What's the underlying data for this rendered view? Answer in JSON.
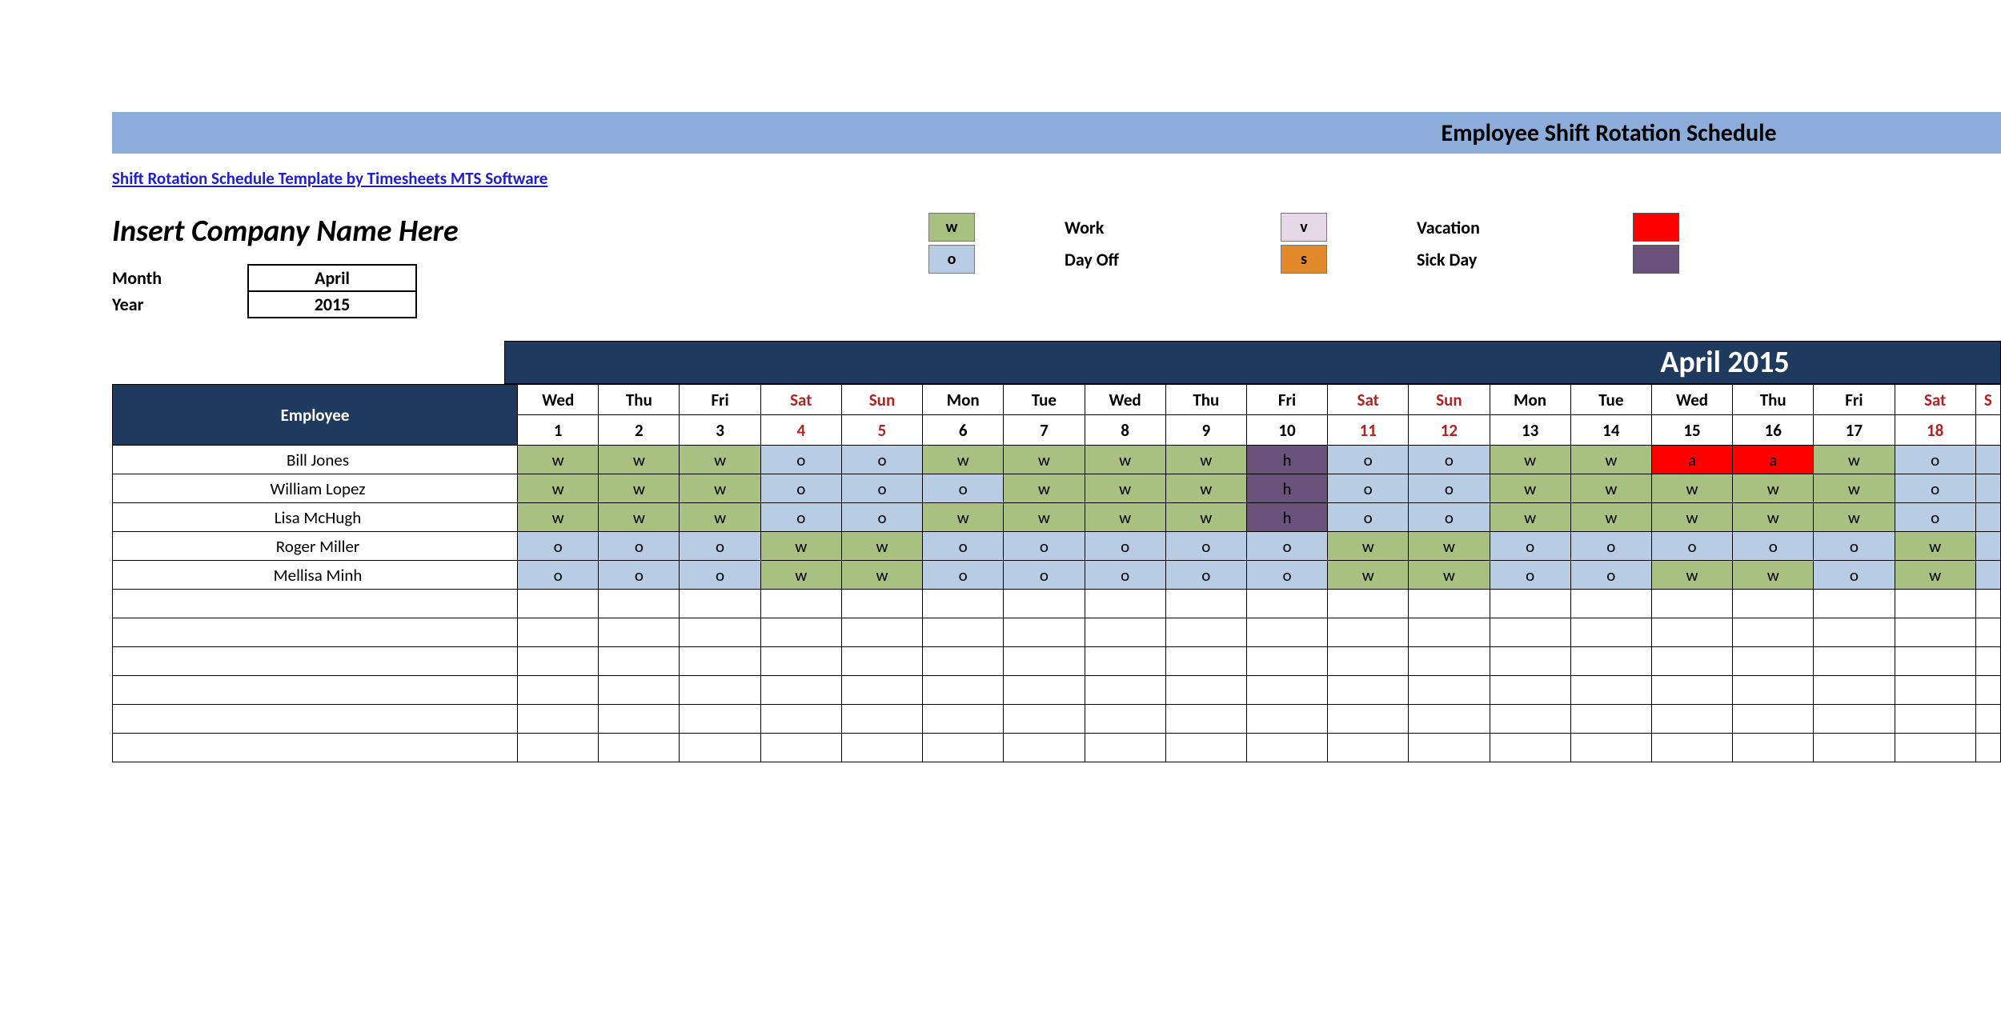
{
  "title_bar": "Employee Shift Rotation Schedule",
  "template_link": "Shift Rotation Schedule Template by Timesheets MTS Software",
  "company_name": "Insert Company Name Here",
  "month_label": "Month",
  "year_label": "Year",
  "month_value": "April",
  "year_value": "2015",
  "month_header": "April 2015",
  "employee_header": "Employee",
  "colors": {
    "title_bar_bg": "#8cacd9",
    "header_bg": "#1f3a5f",
    "header_fg": "#ffffff",
    "weekend_fg": "#b22222",
    "w": "#a8c080",
    "o": "#b8cce4",
    "v": "#e6d8e6",
    "s": "#e28a2b",
    "h": "#6b527a",
    "a": "#ff0000",
    "red_swatch": "#ff0000",
    "purple_swatch": "#6b527a"
  },
  "legend": [
    {
      "code": "w",
      "label": "Work",
      "bg": "#a8c080"
    },
    {
      "code": "o",
      "label": "Day Off",
      "bg": "#b8cce4"
    },
    {
      "code": "v",
      "label": "Vacation",
      "bg": "#e6d8e6"
    },
    {
      "code": "s",
      "label": "Sick Day",
      "bg": "#e28a2b"
    }
  ],
  "day_headers": [
    {
      "dow": "Wed",
      "num": "1",
      "weekend": false
    },
    {
      "dow": "Thu",
      "num": "2",
      "weekend": false
    },
    {
      "dow": "Fri",
      "num": "3",
      "weekend": false
    },
    {
      "dow": "Sat",
      "num": "4",
      "weekend": true
    },
    {
      "dow": "Sun",
      "num": "5",
      "weekend": true
    },
    {
      "dow": "Mon",
      "num": "6",
      "weekend": false
    },
    {
      "dow": "Tue",
      "num": "7",
      "weekend": false
    },
    {
      "dow": "Wed",
      "num": "8",
      "weekend": false
    },
    {
      "dow": "Thu",
      "num": "9",
      "weekend": false
    },
    {
      "dow": "Fri",
      "num": "10",
      "weekend": false
    },
    {
      "dow": "Sat",
      "num": "11",
      "weekend": true
    },
    {
      "dow": "Sun",
      "num": "12",
      "weekend": true
    },
    {
      "dow": "Mon",
      "num": "13",
      "weekend": false
    },
    {
      "dow": "Tue",
      "num": "14",
      "weekend": false
    },
    {
      "dow": "Wed",
      "num": "15",
      "weekend": false
    },
    {
      "dow": "Thu",
      "num": "16",
      "weekend": false
    },
    {
      "dow": "Fri",
      "num": "17",
      "weekend": false
    },
    {
      "dow": "Sat",
      "num": "18",
      "weekend": true
    },
    {
      "dow": "S",
      "num": "",
      "weekend": true
    }
  ],
  "employees": [
    {
      "name": "Bill Jones",
      "shifts": [
        "w",
        "w",
        "w",
        "o",
        "o",
        "w",
        "w",
        "w",
        "w",
        "h",
        "o",
        "o",
        "w",
        "w",
        "a",
        "a",
        "w",
        "o",
        ""
      ]
    },
    {
      "name": "William Lopez",
      "shifts": [
        "w",
        "w",
        "w",
        "o",
        "o",
        "o",
        "w",
        "w",
        "w",
        "h",
        "o",
        "o",
        "w",
        "w",
        "w",
        "w",
        "w",
        "o",
        ""
      ]
    },
    {
      "name": "Lisa McHugh",
      "shifts": [
        "w",
        "w",
        "w",
        "o",
        "o",
        "w",
        "w",
        "w",
        "w",
        "h",
        "o",
        "o",
        "w",
        "w",
        "w",
        "w",
        "w",
        "o",
        ""
      ]
    },
    {
      "name": "Roger Miller",
      "shifts": [
        "o",
        "o",
        "o",
        "w",
        "w",
        "o",
        "o",
        "o",
        "o",
        "o",
        "w",
        "w",
        "o",
        "o",
        "o",
        "o",
        "o",
        "w",
        ""
      ]
    },
    {
      "name": "Mellisa Minh",
      "shifts": [
        "o",
        "o",
        "o",
        "w",
        "w",
        "o",
        "o",
        "o",
        "o",
        "o",
        "w",
        "w",
        "o",
        "o",
        "w",
        "w",
        "o",
        "w",
        ""
      ]
    }
  ],
  "empty_rows": 6
}
